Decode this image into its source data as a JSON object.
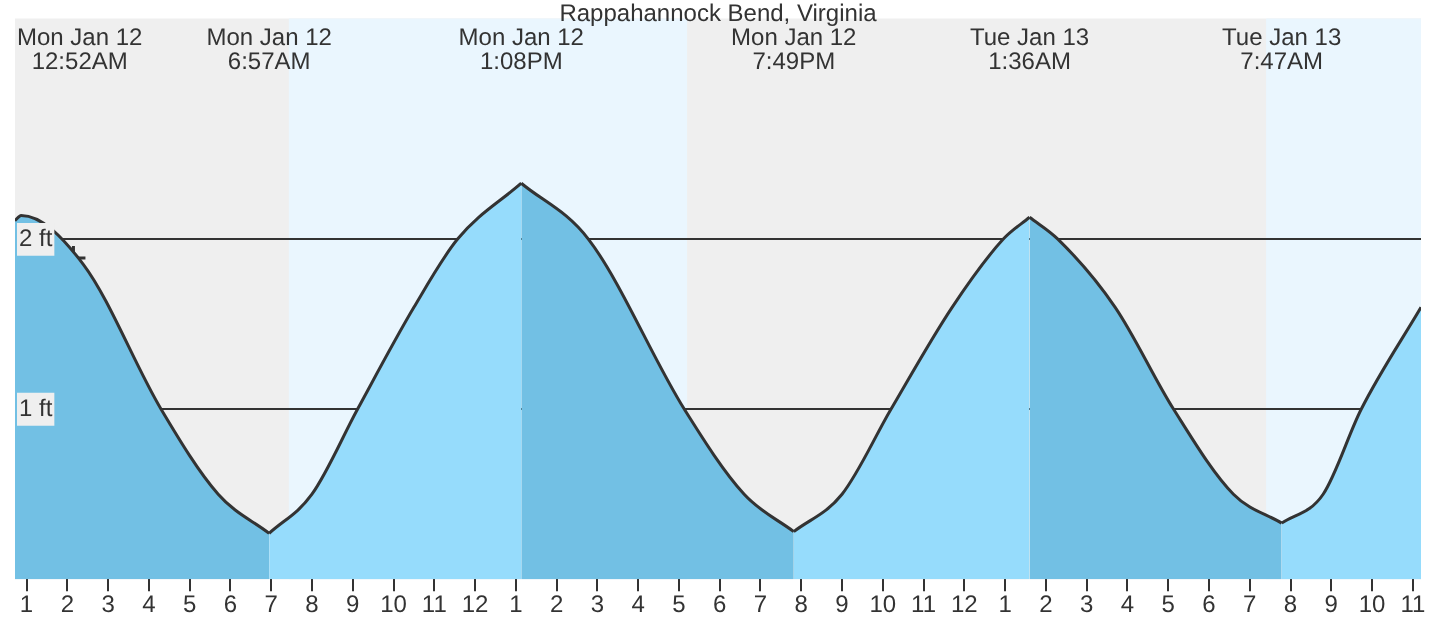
{
  "chart_data": {
    "type": "area",
    "title": "Rappahannock Bend, Virginia",
    "xlim": [
      "--01-12T00:43",
      "--01-13T11:12"
    ],
    "xticks": [
      {
        "value": "--01-12T01:00",
        "label": "1"
      },
      {
        "value": "--01-12T02:00",
        "label": "2"
      },
      {
        "value": "--01-12T03:00",
        "label": "3"
      },
      {
        "value": "--01-12T04:00",
        "label": "4"
      },
      {
        "value": "--01-12T05:00",
        "label": "5"
      },
      {
        "value": "--01-12T06:00",
        "label": "6"
      },
      {
        "value": "--01-12T07:00",
        "label": "7"
      },
      {
        "value": "--01-12T08:00",
        "label": "8"
      },
      {
        "value": "--01-12T09:00",
        "label": "9"
      },
      {
        "value": "--01-12T10:00",
        "label": "10"
      },
      {
        "value": "--01-12T11:00",
        "label": "11"
      },
      {
        "value": "--01-12T12:00",
        "label": "12"
      },
      {
        "value": "--01-12T13:00",
        "label": "1"
      },
      {
        "value": "--01-12T14:00",
        "label": "2"
      },
      {
        "value": "--01-12T15:00",
        "label": "3"
      },
      {
        "value": "--01-12T16:00",
        "label": "4"
      },
      {
        "value": "--01-12T17:00",
        "label": "5"
      },
      {
        "value": "--01-12T18:00",
        "label": "6"
      },
      {
        "value": "--01-12T19:00",
        "label": "7"
      },
      {
        "value": "--01-12T20:00",
        "label": "8"
      },
      {
        "value": "--01-12T21:00",
        "label": "9"
      },
      {
        "value": "--01-12T22:00",
        "label": "10"
      },
      {
        "value": "--01-12T23:00",
        "label": "11"
      },
      {
        "value": "--01-13T00:00",
        "label": "12"
      },
      {
        "value": "--01-13T01:00",
        "label": "1"
      },
      {
        "value": "--01-13T02:00",
        "label": "2"
      },
      {
        "value": "--01-13T03:00",
        "label": "3"
      },
      {
        "value": "--01-13T04:00",
        "label": "4"
      },
      {
        "value": "--01-13T05:00",
        "label": "5"
      },
      {
        "value": "--01-13T06:00",
        "label": "6"
      },
      {
        "value": "--01-13T07:00",
        "label": "7"
      },
      {
        "value": "--01-13T08:00",
        "label": "8"
      },
      {
        "value": "--01-13T09:00",
        "label": "9"
      },
      {
        "value": "--01-13T10:00",
        "label": "10"
      },
      {
        "value": "--01-13T11:00",
        "label": "11"
      }
    ],
    "ylim": [
      0,
      3.3
    ],
    "yticks": [
      {
        "value": 1,
        "label": "1 ft"
      },
      {
        "value": 2,
        "label": "2 ft"
      }
    ],
    "grid": "y",
    "legend": false,
    "bands": [
      {
        "axis": "x",
        "from": "--01-12T07:26",
        "to": "--01-12T17:12",
        "color": "#eaf6fe"
      },
      {
        "axis": "x",
        "from": "--01-13T07:24",
        "to": "--01-13T11:12",
        "color": "#eaf6fe"
      }
    ],
    "annotations": [
      "Mon Jan 12\n12:52AM",
      "Mon Jan 12\n6:57AM",
      "Mon Jan 12\n1:08PM",
      "Mon Jan 12\n7:49PM",
      "Tue Jan 13\n1:36AM",
      "Tue Jan 13\n7:47AM"
    ],
    "series": [
      {
        "color": "#72c0e4",
        "marker": "none",
        "x": [
          "--01-12T00:43",
          "--01-12T00:52",
          "--01-12T02:24",
          "--01-12T04:18",
          "--01-12T05:42",
          "--01-12T06:57",
          "--01-12T10:00",
          "--01-12T13:08",
          "--01-12T14:47",
          "--01-12T17:08",
          "--01-12T18:36",
          "--01-12T19:49",
          "--01-12T22:42",
          "--01-13T01:36",
          "--01-13T02:18",
          "--01-13T03:42",
          "--01-13T05:08",
          "--01-13T06:36",
          "--01-13T07:47"
        ],
        "values": [
          2.11,
          2.14,
          1.85,
          1.0,
          0.5,
          0.27,
          null,
          2.33,
          2.0,
          1.0,
          0.5,
          0.28,
          null,
          2.13,
          2.0,
          1.6,
          1.0,
          0.5,
          0.33
        ]
      },
      {
        "color": "#96dcfc",
        "marker": "none",
        "x": [
          "--01-12T06:57",
          "--01-12T08:00",
          "--01-12T09:07",
          "--01-12T10:30",
          "--01-12T11:34",
          "--01-12T13:08",
          "--01-12T16:00",
          "--01-12T19:49",
          "--01-12T21:00",
          "--01-12T22:12",
          "--01-12T23:42",
          "--01-13T00:57",
          "--01-13T01:36",
          "--01-13T04:30",
          "--01-13T07:47",
          "--01-13T08:48",
          "--01-13T09:44",
          "--01-13T11:12"
        ],
        "values": [
          0.27,
          0.5,
          1.0,
          1.6,
          2.0,
          2.33,
          null,
          0.28,
          0.5,
          1.0,
          1.6,
          2.0,
          2.13,
          null,
          0.33,
          0.5,
          1.0,
          1.6
        ]
      },
      {
        "type": "scatter",
        "color": "#333333",
        "marker": "cross",
        "x": [
          "--01-12T02:09"
        ],
        "values": [
          1.89
        ]
      }
    ]
  }
}
